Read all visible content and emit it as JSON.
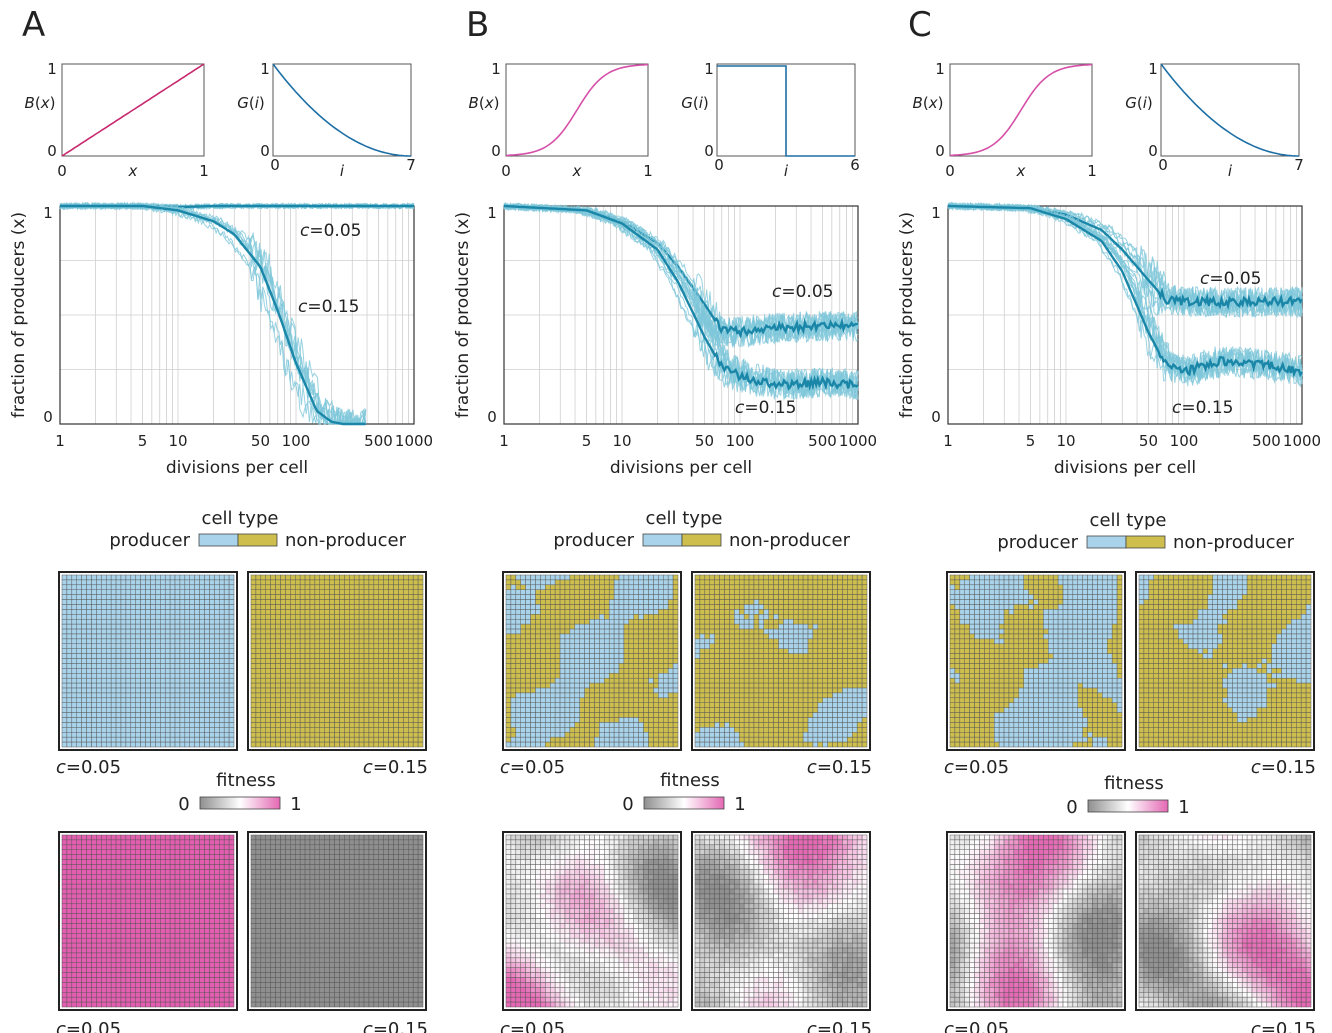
{
  "chart_data": [
    {
      "panel": "A",
      "type": "line",
      "B": {
        "ylabel": "B(x)",
        "xlabel": "x",
        "xticks": [
          "0",
          "1"
        ],
        "yticks": [
          "0",
          "1"
        ],
        "shape": "linear",
        "color": "#c8286e"
      },
      "G": {
        "ylabel": "G(i)",
        "xlabel": "i",
        "xticks": [
          "0",
          "7"
        ],
        "yticks": [
          "0",
          "1"
        ],
        "shape": "convex-decay",
        "xmax": 7,
        "color": "#1d6fa5"
      },
      "main": {
        "ylabel": "fraction of producers (x)",
        "xlabel": "divisions per cell",
        "xscale": "log",
        "xlim": [
          1,
          1000
        ],
        "ylim": [
          0,
          1
        ],
        "xticks": [
          "1",
          "5",
          "10",
          "50",
          "100",
          "500",
          "1000"
        ],
        "yticks": [
          "0",
          "1"
        ],
        "series": [
          {
            "name": "c=0.05",
            "x": [
              1,
              5,
              10,
              20,
              50,
              100,
              300,
              1000
            ],
            "y": [
              1.0,
              1.0,
              0.995,
              1.0,
              1.0,
              1.0,
              1.0,
              1.0
            ]
          },
          {
            "name": "c=0.15",
            "x": [
              1,
              5,
              10,
              20,
              30,
              50,
              70,
              100,
              150,
              200,
              250
            ],
            "y": [
              1.0,
              1.0,
              0.98,
              0.93,
              0.87,
              0.72,
              0.52,
              0.28,
              0.06,
              0.01,
              0.0
            ]
          }
        ]
      },
      "grid_labels": [
        "c=0.05",
        "c=0.15"
      ],
      "grid_pattern": [
        "uniform-producer",
        "uniform-non-producer"
      ],
      "fitness_pattern": [
        "uniform-high",
        "uniform-low"
      ]
    },
    {
      "panel": "B",
      "type": "line",
      "B": {
        "ylabel": "B(x)",
        "xlabel": "x",
        "xticks": [
          "0",
          "1"
        ],
        "yticks": [
          "0",
          "1"
        ],
        "shape": "sigmoid",
        "color": "#d64fa8"
      },
      "G": {
        "ylabel": "G(i)",
        "xlabel": "i",
        "xticks": [
          "0",
          "6"
        ],
        "yticks": [
          "0",
          "1"
        ],
        "shape": "step",
        "xmax": 6,
        "step_at": 3,
        "color": "#1d6fa5"
      },
      "main": {
        "ylabel": "fraction of producers (x)",
        "xlabel": "divisions per cell",
        "xscale": "log",
        "xlim": [
          1,
          1000
        ],
        "ylim": [
          0,
          1
        ],
        "xticks": [
          "1",
          "5",
          "10",
          "50",
          "100",
          "500",
          "1000"
        ],
        "yticks": [
          "0",
          "1"
        ],
        "series": [
          {
            "name": "c=0.05",
            "x": [
              1,
              5,
              10,
              20,
              30,
              50,
              70,
              100,
              200,
              500,
              1000
            ],
            "y": [
              1.0,
              0.98,
              0.93,
              0.83,
              0.72,
              0.55,
              0.43,
              0.42,
              0.44,
              0.45,
              0.45
            ]
          },
          {
            "name": "c=0.15",
            "x": [
              1,
              5,
              10,
              20,
              30,
              50,
              70,
              100,
              200,
              500,
              1000
            ],
            "y": [
              1.0,
              0.98,
              0.92,
              0.8,
              0.65,
              0.4,
              0.26,
              0.22,
              0.18,
              0.19,
              0.18
            ]
          }
        ]
      },
      "grid_labels": [
        "c=0.05",
        "c=0.15"
      ],
      "grid_pattern": [
        "mixed",
        "mixed"
      ],
      "fitness_pattern": [
        "mixed",
        "mixed"
      ]
    },
    {
      "panel": "C",
      "type": "line",
      "B": {
        "ylabel": "B(x)",
        "xlabel": "x",
        "xticks": [
          "0",
          "1"
        ],
        "yticks": [
          "0",
          "1"
        ],
        "shape": "sigmoid",
        "color": "#d64fa8"
      },
      "G": {
        "ylabel": "G(i)",
        "xlabel": "i",
        "xticks": [
          "0",
          "7"
        ],
        "yticks": [
          "0",
          "1"
        ],
        "shape": "convex-decay",
        "xmax": 7,
        "color": "#1d6fa5"
      },
      "main": {
        "ylabel": "fraction of producers (x)",
        "xlabel": "divisions per cell",
        "xscale": "log",
        "xlim": [
          1,
          1000
        ],
        "ylim": [
          0,
          1
        ],
        "xticks": [
          "1",
          "5",
          "10",
          "50",
          "100",
          "500",
          "1000"
        ],
        "yticks": [
          "0",
          "1"
        ],
        "series": [
          {
            "name": "c=0.05",
            "x": [
              1,
              5,
              10,
              20,
              30,
              50,
              70,
              100,
              200,
              500,
              1000
            ],
            "y": [
              1.0,
              0.99,
              0.96,
              0.89,
              0.8,
              0.66,
              0.57,
              0.56,
              0.56,
              0.56,
              0.56
            ]
          },
          {
            "name": "c=0.15",
            "x": [
              1,
              5,
              10,
              20,
              30,
              50,
              70,
              100,
              200,
              500,
              1000
            ],
            "y": [
              1.0,
              0.99,
              0.94,
              0.84,
              0.7,
              0.42,
              0.27,
              0.24,
              0.29,
              0.27,
              0.24
            ]
          }
        ]
      },
      "grid_labels": [
        "c=0.05",
        "c=0.15"
      ],
      "grid_pattern": [
        "mixed",
        "mixed"
      ],
      "fitness_pattern": [
        "mixed",
        "mixed"
      ]
    }
  ],
  "legend": {
    "cell_type_title": "cell type",
    "producer": "producer",
    "non_producer": "non-producer",
    "fitness_title": "fitness",
    "fit_min": "0",
    "fit_max": "1"
  },
  "colors": {
    "producer": "#a9d3ea",
    "non_producer": "#cdbe4e",
    "fitness_high": "#e468b4",
    "fitness_low": "#8f8f8f",
    "curve": "#1a86a8",
    "curve_light": "#7ec7da"
  }
}
